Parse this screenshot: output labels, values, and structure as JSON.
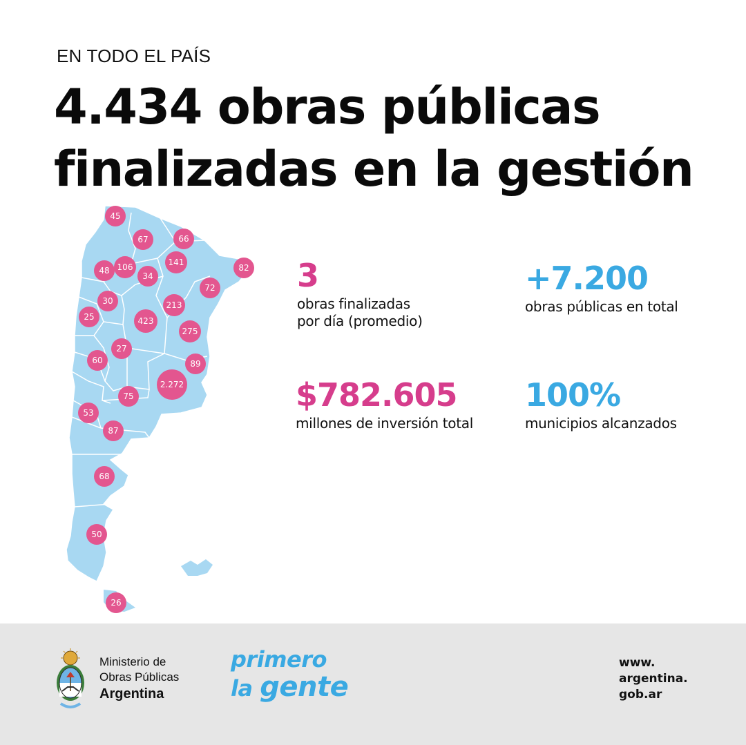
{
  "header": {
    "kicker": "EN TODO EL PAÍS",
    "headline_line1": "4.434 obras públicas",
    "headline_line2": "finalizadas en la gestión"
  },
  "map": {
    "badges": [
      {
        "id": "jujuy",
        "value": "45"
      },
      {
        "id": "salta",
        "value": "67"
      },
      {
        "id": "formosa",
        "value": "66"
      },
      {
        "id": "misiones",
        "value": "82"
      },
      {
        "id": "chaco",
        "value": "141"
      },
      {
        "id": "catamarca",
        "value": "48"
      },
      {
        "id": "tucuman",
        "value": "106"
      },
      {
        "id": "santiago",
        "value": "34"
      },
      {
        "id": "corrientes",
        "value": "72"
      },
      {
        "id": "larioja",
        "value": "30"
      },
      {
        "id": "santafe",
        "value": "213"
      },
      {
        "id": "sanjuan",
        "value": "25"
      },
      {
        "id": "cordoba",
        "value": "423"
      },
      {
        "id": "entrerios",
        "value": "275"
      },
      {
        "id": "sanluis",
        "value": "27"
      },
      {
        "id": "mendoza",
        "value": "60"
      },
      {
        "id": "caba",
        "value": "89"
      },
      {
        "id": "buenosaires",
        "value": "2.272"
      },
      {
        "id": "lapampa",
        "value": "75"
      },
      {
        "id": "neuquen",
        "value": "53"
      },
      {
        "id": "rionegro",
        "value": "87"
      },
      {
        "id": "chubut",
        "value": "68"
      },
      {
        "id": "santacruz",
        "value": "50"
      },
      {
        "id": "tierradelfuego",
        "value": "26"
      }
    ],
    "colors": {
      "land": "#a8d8f2",
      "borders": "#ffffff",
      "badge": "#e3568f"
    }
  },
  "stats": {
    "per_day": {
      "value": "3",
      "label_line1": "obras finalizadas",
      "label_line2": "por día (promedio)"
    },
    "total": {
      "value": "+7.200",
      "label": "obras públicas en total"
    },
    "investment": {
      "value": "$782.605",
      "label": "millones de inversión total"
    },
    "municipalities": {
      "value": "100%",
      "label": "municipios alcanzados"
    }
  },
  "footer": {
    "ministry_line1": "Ministerio de",
    "ministry_line2": "Obras Públicas",
    "ministry_line3": "Argentina",
    "slogan_line1": "primero",
    "slogan_line2_a": "la",
    "slogan_line2_b": "gente",
    "url_line1": "www.",
    "url_line2": "argentina.",
    "url_line3": "gob.ar"
  },
  "colors": {
    "pink": "#d63d8c",
    "blue": "#3aa9e2",
    "footer_bg": "#e6e6e6"
  }
}
